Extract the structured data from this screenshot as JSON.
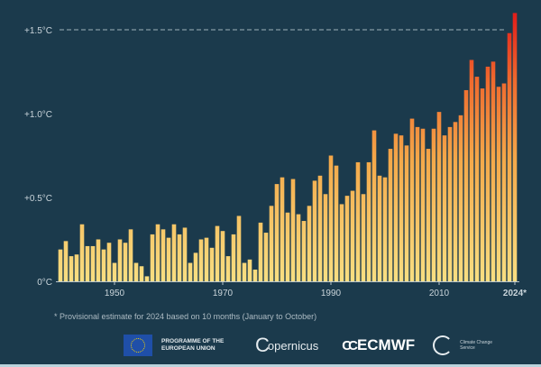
{
  "chart_data": {
    "type": "bar",
    "title": "",
    "xlabel": "",
    "ylabel": "",
    "ylim": [
      0,
      1.6
    ],
    "grid": false,
    "y_ticks": [
      {
        "value": 0,
        "label": "0°C"
      },
      {
        "value": 0.5,
        "label": "+0.5°C"
      },
      {
        "value": 1.0,
        "label": "+1.0°C"
      },
      {
        "value": 1.5,
        "label": "+1.5°C"
      }
    ],
    "reference_line": {
      "value": 1.5,
      "style": "dashed"
    },
    "x_ticks": [
      {
        "value": 1950,
        "label": "1950"
      },
      {
        "value": 1970,
        "label": "1970"
      },
      {
        "value": 1990,
        "label": "1990"
      },
      {
        "value": 2010,
        "label": "2010"
      },
      {
        "value": 2024,
        "label": "2024*"
      }
    ],
    "categories": [
      1940,
      1941,
      1942,
      1943,
      1944,
      1945,
      1946,
      1947,
      1948,
      1949,
      1950,
      1951,
      1952,
      1953,
      1954,
      1955,
      1956,
      1957,
      1958,
      1959,
      1960,
      1961,
      1962,
      1963,
      1964,
      1965,
      1966,
      1967,
      1968,
      1969,
      1970,
      1971,
      1972,
      1973,
      1974,
      1975,
      1976,
      1977,
      1978,
      1979,
      1980,
      1981,
      1982,
      1983,
      1984,
      1985,
      1986,
      1987,
      1988,
      1989,
      1990,
      1991,
      1992,
      1993,
      1994,
      1995,
      1996,
      1997,
      1998,
      1999,
      2000,
      2001,
      2002,
      2003,
      2004,
      2005,
      2006,
      2007,
      2008,
      2009,
      2010,
      2011,
      2012,
      2013,
      2014,
      2015,
      2016,
      2017,
      2018,
      2019,
      2020,
      2021,
      2022,
      2023,
      2024
    ],
    "values": [
      0.19,
      0.24,
      0.15,
      0.16,
      0.34,
      0.21,
      0.21,
      0.25,
      0.19,
      0.23,
      0.11,
      0.25,
      0.23,
      0.31,
      0.11,
      0.09,
      0.03,
      0.28,
      0.34,
      0.31,
      0.26,
      0.34,
      0.28,
      0.32,
      0.11,
      0.17,
      0.25,
      0.26,
      0.2,
      0.33,
      0.3,
      0.15,
      0.28,
      0.39,
      0.11,
      0.13,
      0.07,
      0.35,
      0.29,
      0.45,
      0.58,
      0.62,
      0.41,
      0.61,
      0.4,
      0.36,
      0.45,
      0.6,
      0.63,
      0.52,
      0.75,
      0.69,
      0.46,
      0.51,
      0.54,
      0.71,
      0.52,
      0.71,
      0.9,
      0.63,
      0.62,
      0.79,
      0.88,
      0.87,
      0.81,
      0.97,
      0.92,
      0.91,
      0.79,
      0.91,
      1.01,
      0.87,
      0.92,
      0.95,
      0.99,
      1.14,
      1.32,
      1.22,
      1.15,
      1.28,
      1.31,
      1.16,
      1.18,
      1.48,
      1.6
    ],
    "colors": {
      "low": "#f8df82",
      "mid": "#f29a3f",
      "high": "#e21d1a",
      "background": "#1b3a4c"
    }
  },
  "footnote": "* Provisional estimate for 2024 based on 10 months (January to October)",
  "logos": {
    "eu": "PROGRAMME OF THE EUROPEAN UNION",
    "copernicus": "opernicus",
    "ecmwf": "ECMWF",
    "c3s": "Climate Change Service"
  }
}
